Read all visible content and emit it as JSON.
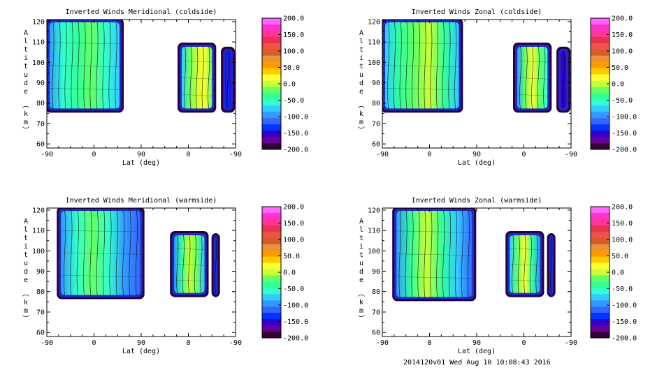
{
  "footer": "2014120v01 Wed Aug 10 10:08:43 2016",
  "colorbar": {
    "ticks": [
      "200.0",
      "150.0",
      "100.0",
      "50.0",
      "0.0",
      "-50.0",
      "-100.0",
      "-150.0",
      "-200.0"
    ],
    "colors": [
      "#ff66ff",
      "#ff33cc",
      "#ff3399",
      "#e8334f",
      "#f0524a",
      "#d95a2a",
      "#e8923a",
      "#ff9900",
      "#ffcc00",
      "#ffff33",
      "#ccff33",
      "#66ff66",
      "#33ff99",
      "#33ffcc",
      "#33ccff",
      "#3399ff",
      "#3366ff",
      "#0033ff",
      "#3300cc",
      "#660099",
      "#330033"
    ]
  },
  "chart_data": [
    {
      "type": "heatmap",
      "title": "Inverted Winds Meridional (coldside)",
      "xlabel": "Lat (deg)",
      "ylabel": "Altitude (km)",
      "xticks": [
        "-90",
        "0",
        "90",
        "0",
        "-90"
      ],
      "yticks": [
        "60",
        "70",
        "80",
        "90",
        "100",
        "110",
        "120"
      ],
      "ylim": [
        58,
        121
      ],
      "colorbar_range": [
        -200,
        200
      ],
      "blobs": [
        {
          "x0": 0.0,
          "x1": 0.4,
          "y0": 76,
          "y1": 121,
          "values": [
            -90,
            -60,
            -40,
            -20,
            -50,
            -80
          ]
        },
        {
          "x0": 0.7,
          "x1": 0.89,
          "y0": 76,
          "y1": 109,
          "values": [
            -80,
            -20,
            10,
            30,
            -20
          ]
        },
        {
          "x0": 0.93,
          "x1": 0.99,
          "y0": 76,
          "y1": 107,
          "values": [
            -150,
            -140,
            -150
          ]
        }
      ]
    },
    {
      "type": "heatmap",
      "title": "Inverted Winds Zonal (coldside)",
      "xlabel": "Lat (deg)",
      "ylabel": "Altitude (km)",
      "xticks": [
        "-90",
        "0",
        "90",
        "0",
        "-90"
      ],
      "yticks": [
        "60",
        "70",
        "80",
        "90",
        "100",
        "110",
        "120"
      ],
      "ylim": [
        58,
        121
      ],
      "colorbar_range": [
        -200,
        200
      ],
      "blobs": [
        {
          "x0": 0.0,
          "x1": 0.42,
          "y0": 76,
          "y1": 121,
          "values": [
            -80,
            -40,
            -10,
            10,
            -30,
            -70
          ]
        },
        {
          "x0": 0.7,
          "x1": 0.89,
          "y0": 76,
          "y1": 109,
          "values": [
            -90,
            -20,
            20,
            -10,
            -60
          ]
        },
        {
          "x0": 0.93,
          "x1": 0.99,
          "y0": 76,
          "y1": 107,
          "values": [
            -160,
            -150,
            -160
          ]
        }
      ]
    },
    {
      "type": "heatmap",
      "title": "Inverted Winds Meridional (warmside)",
      "xlabel": "Lat (deg)",
      "ylabel": "Altitude (km)",
      "xticks": [
        "-90",
        "0",
        "90",
        "0",
        "-90"
      ],
      "yticks": [
        "60",
        "70",
        "80",
        "90",
        "100",
        "110",
        "120"
      ],
      "ylim": [
        58,
        121
      ],
      "colorbar_range": [
        -200,
        200
      ],
      "blobs": [
        {
          "x0": 0.06,
          "x1": 0.51,
          "y0": 77,
          "y1": 121,
          "values": [
            -100,
            -60,
            -20,
            -50,
            -90,
            -110
          ]
        },
        {
          "x0": 0.66,
          "x1": 0.85,
          "y0": 78,
          "y1": 109,
          "values": [
            -90,
            -30,
            10,
            -20,
            -80
          ]
        },
        {
          "x0": 0.88,
          "x1": 0.91,
          "y0": 78,
          "y1": 108,
          "values": [
            -150,
            -150
          ]
        }
      ]
    },
    {
      "type": "heatmap",
      "title": "Inverted Winds Zonal (warmside)",
      "xlabel": "Lat (deg)",
      "ylabel": "Altitude (km)",
      "xticks": [
        "-90",
        "0",
        "90",
        "0",
        "-90"
      ],
      "yticks": [
        "60",
        "70",
        "80",
        "90",
        "100",
        "110",
        "120"
      ],
      "ylim": [
        58,
        121
      ],
      "colorbar_range": [
        -200,
        200
      ],
      "blobs": [
        {
          "x0": 0.06,
          "x1": 0.49,
          "y0": 76,
          "y1": 121,
          "values": [
            -90,
            -40,
            0,
            -30,
            -70,
            -110
          ]
        },
        {
          "x0": 0.66,
          "x1": 0.85,
          "y0": 78,
          "y1": 109,
          "values": [
            -80,
            -20,
            20,
            -30,
            -90
          ]
        },
        {
          "x0": 0.88,
          "x1": 0.91,
          "y0": 78,
          "y1": 108,
          "values": [
            -150,
            -150
          ]
        }
      ]
    }
  ]
}
